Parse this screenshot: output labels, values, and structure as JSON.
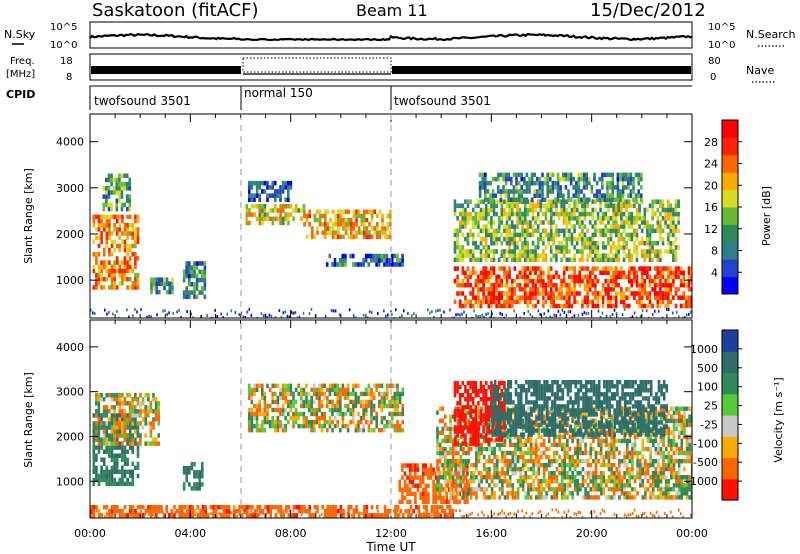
{
  "header": {
    "station": "Saskatoon (fitACF)",
    "beam": "Beam 11",
    "date": "15/Dec/2012"
  },
  "noise_panel": {
    "left_label": "N.Sky",
    "right_label": "N.Search",
    "left_ticks": [
      "10^5",
      "10^0"
    ],
    "right_ticks": [
      "10^5",
      "10^0"
    ]
  },
  "freq_panel": {
    "left_label_line1": "Freq.",
    "left_label_line2": "[MHz]",
    "left_ticks": [
      "18",
      "8"
    ],
    "right_label": "Nave",
    "right_ticks": [
      "80",
      "0"
    ]
  },
  "cpid": {
    "label": "CPID",
    "segments": [
      {
        "name": "twofsound 3501",
        "start_h": 0,
        "end_h": 6
      },
      {
        "name": "normal 150",
        "start_h": 6,
        "end_h": 12
      },
      {
        "name": "twofsound 3501",
        "start_h": 12,
        "end_h": 24
      }
    ]
  },
  "power_panel": {
    "ylabel": "Slant Range [km]",
    "yticks": [
      "4000",
      "3000",
      "2000",
      "1000"
    ],
    "colorbar_label": "Power [dB]",
    "colorbar_ticks": [
      "28",
      "24",
      "20",
      "16",
      "12",
      "8",
      "4"
    ]
  },
  "velocity_panel": {
    "ylabel": "Slant Range [km]",
    "yticks": [
      "4000",
      "3000",
      "2000",
      "1000"
    ],
    "colorbar_label": "Velocity  [m s⁻¹]",
    "colorbar_ticks": [
      "1000",
      "500",
      "100",
      "25",
      "-25",
      "-100",
      "-500",
      "-1000"
    ]
  },
  "xaxis": {
    "label": "Time UT",
    "ticks": [
      "00:00",
      "04:00",
      "08:00",
      "12:00",
      "16:00",
      "20:00",
      "00:00"
    ]
  },
  "chart_data": [
    {
      "type": "heatmap",
      "ylabel": "Slant Range [km]",
      "xlabel": "Time UT",
      "xlim_hours": [
        0,
        24
      ],
      "ylim_km": [
        180,
        4600
      ],
      "color_scale": {
        "label": "Power [dB]",
        "range": [
          0,
          32
        ],
        "colors": [
          "#0000ff",
          "#2244cc",
          "#2e7d8a",
          "#2e8b57",
          "#66bb33",
          "#d4dd22",
          "#ffaa00",
          "#ff6600",
          "#ff2200",
          "#ff0000"
        ]
      },
      "regions": [
        {
          "t": [
            0.1,
            1.9
          ],
          "r": [
            800,
            2400
          ],
          "value": 22
        },
        {
          "t": [
            0.5,
            1.6
          ],
          "r": [
            2500,
            3300
          ],
          "value": 12
        },
        {
          "t": [
            2.4,
            3.3
          ],
          "r": [
            700,
            1000
          ],
          "value": 10
        },
        {
          "t": [
            3.7,
            4.6
          ],
          "r": [
            600,
            1400
          ],
          "value": 9
        },
        {
          "t": [
            6.2,
            8.5
          ],
          "r": [
            2200,
            2600
          ],
          "value": 18
        },
        {
          "t": [
            8.5,
            12.0
          ],
          "r": [
            1900,
            2500
          ],
          "value": 20
        },
        {
          "t": [
            6.3,
            8.0
          ],
          "r": [
            2700,
            3100
          ],
          "value": 6
        },
        {
          "t": [
            9.3,
            12.5
          ],
          "r": [
            1300,
            1500
          ],
          "value": 7
        },
        {
          "t": [
            14.5,
            24.0
          ],
          "r": [
            400,
            1300
          ],
          "value": 26
        },
        {
          "t": [
            14.5,
            23.5
          ],
          "r": [
            1400,
            2700
          ],
          "value": 15
        },
        {
          "t": [
            15.5,
            22.0
          ],
          "r": [
            2700,
            3300
          ],
          "value": 10
        }
      ]
    },
    {
      "type": "heatmap",
      "ylabel": "Slant Range [km]",
      "xlabel": "Time UT",
      "xlim_hours": [
        0,
        24
      ],
      "ylim_km": [
        180,
        4600
      ],
      "color_scale": {
        "label": "Velocity [m s-1]",
        "levels": [
          1000,
          500,
          100,
          25,
          -25,
          -100,
          -500,
          -1000
        ],
        "colors": [
          "#1f3fa0",
          "#2e6e6a",
          "#2e8b57",
          "#55cc33",
          "#c8c8c8",
          "#ffaa00",
          "#ff6600",
          "#ff1100"
        ]
      },
      "regions": [
        {
          "t": [
            0.1,
            1.9
          ],
          "r": [
            900,
            2500
          ],
          "value": 300
        },
        {
          "t": [
            0.2,
            2.7
          ],
          "r": [
            1800,
            2900
          ],
          "value": 0
        },
        {
          "t": [
            3.7,
            4.5
          ],
          "r": [
            800,
            1400
          ],
          "value": 300
        },
        {
          "t": [
            6.3,
            12.5
          ],
          "r": [
            2100,
            3100
          ],
          "value": 0
        },
        {
          "t": [
            0.0,
            14.5
          ],
          "r": [
            200,
            400
          ],
          "value": -200
        },
        {
          "t": [
            12.3,
            15.0
          ],
          "r": [
            500,
            1400
          ],
          "value": -200
        },
        {
          "t": [
            13.8,
            24.0
          ],
          "r": [
            600,
            2600
          ],
          "value": 0
        },
        {
          "t": [
            14.5,
            16.5
          ],
          "r": [
            1800,
            3200
          ],
          "value": -600
        },
        {
          "t": [
            16.0,
            23.0
          ],
          "r": [
            2000,
            3200
          ],
          "value": 600
        },
        {
          "t": [
            22.5,
            24.0
          ],
          "r": [
            600,
            1100
          ],
          "value": 80
        }
      ]
    }
  ]
}
